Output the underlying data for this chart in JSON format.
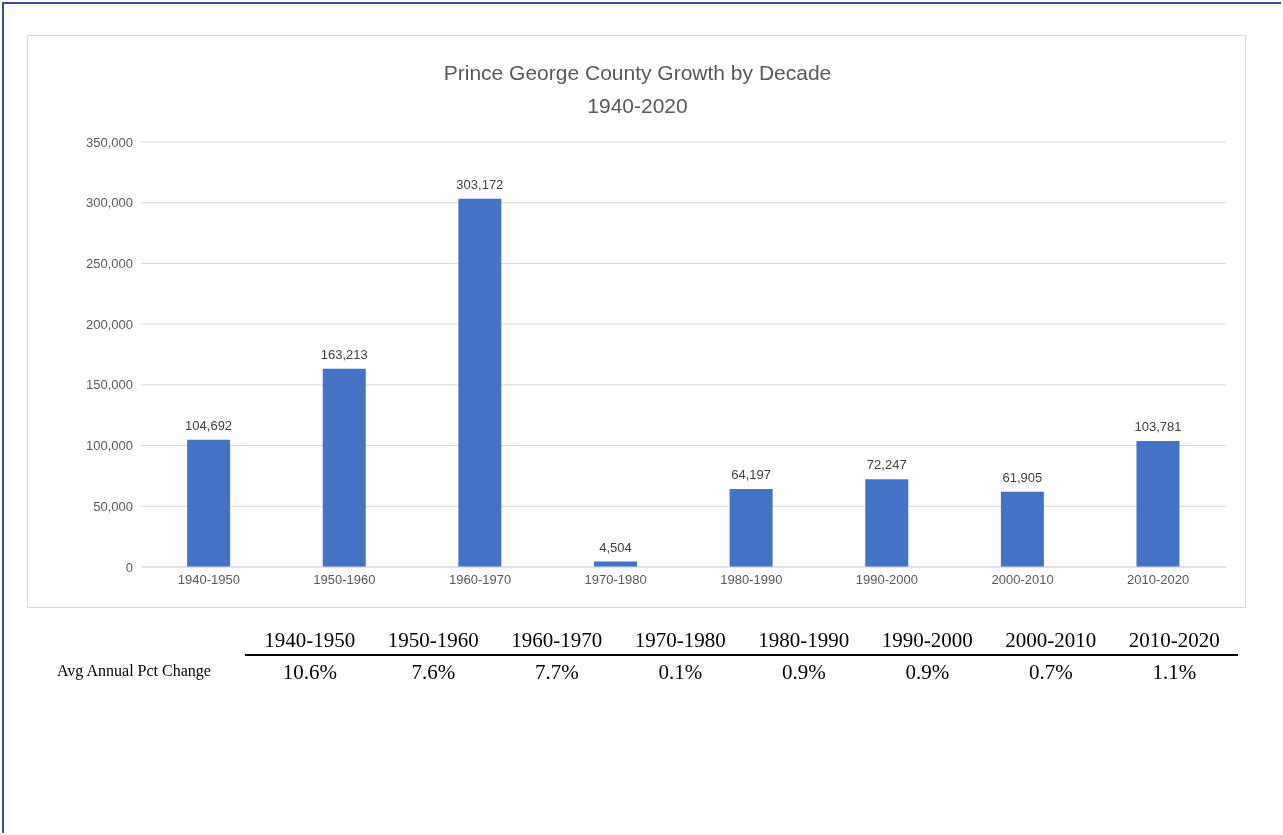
{
  "chart_data": {
    "type": "bar",
    "title": "Prince George County Growth by Decade\n1940-2020",
    "categories": [
      "1940-1950",
      "1950-1960",
      "1960-1970",
      "1970-1980",
      "1980-1990",
      "1990-2000",
      "2000-2010",
      "2010-2020"
    ],
    "values": [
      104692,
      163213,
      303172,
      4504,
      64197,
      72247,
      61905,
      103781
    ],
    "value_labels": [
      "104,692",
      "163,213",
      "303,172",
      "4,504",
      "64,197",
      "72,247",
      "61,905",
      "103,781"
    ],
    "color": "#4472c4",
    "ylim": [
      0,
      350000
    ],
    "yticks": [
      0,
      {
        "value": 50000,
        "label": "50,000"
      },
      {
        "value": 100000,
        "label": "100,000"
      },
      {
        "value": 150000,
        "label": "150,000"
      },
      {
        "value": 200000,
        "label": "200,000"
      },
      {
        "value": 250000,
        "label": "250,000"
      },
      {
        "value": 300000,
        "label": "300,000"
      },
      {
        "value": 350000,
        "label": "350,000"
      }
    ],
    "grid": "y",
    "annotations": [
      "Avg Annual Pct Change",
      "10.6%",
      "7.6%",
      "7.7%",
      "0.1%",
      "0.9%",
      "0.9%",
      "0.7%",
      "1.1%"
    ]
  }
}
